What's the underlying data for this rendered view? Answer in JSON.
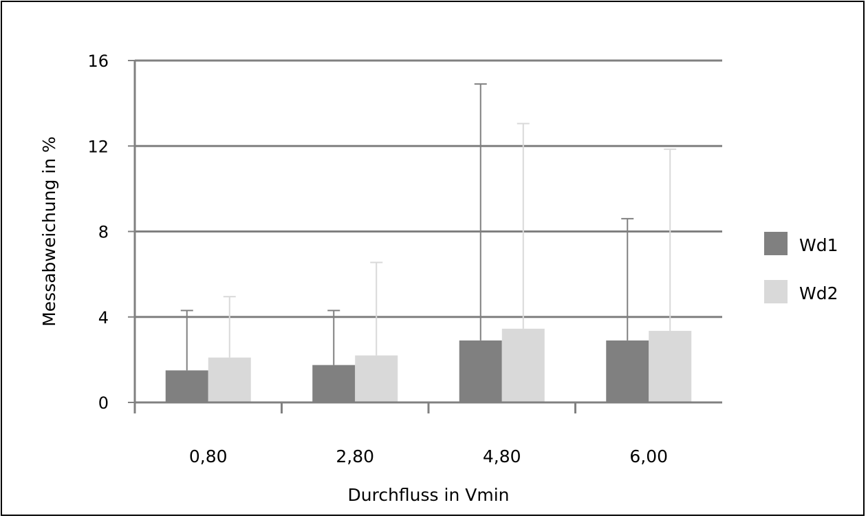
{
  "chart_data": {
    "type": "bar",
    "title": "",
    "xlabel": "Durchfluss in Vmin",
    "ylabel": "Messabweichung in %",
    "ylim": [
      0,
      16
    ],
    "yticks": [
      0,
      4,
      8,
      12,
      16
    ],
    "grid": true,
    "legend_position": "right",
    "categories": [
      "0,80",
      "2,80",
      "4,80",
      "6,00"
    ],
    "series": [
      {
        "name": "Wd1",
        "color": "#808080",
        "values": [
          1.5,
          1.75,
          2.9,
          2.9
        ],
        "error_upper": [
          4.3,
          4.3,
          14.9,
          8.6
        ]
      },
      {
        "name": "Wd2",
        "color": "#d9d9d9",
        "values": [
          2.1,
          2.2,
          3.45,
          3.35
        ],
        "error_upper": [
          4.95,
          6.55,
          13.05,
          11.85
        ]
      }
    ]
  }
}
